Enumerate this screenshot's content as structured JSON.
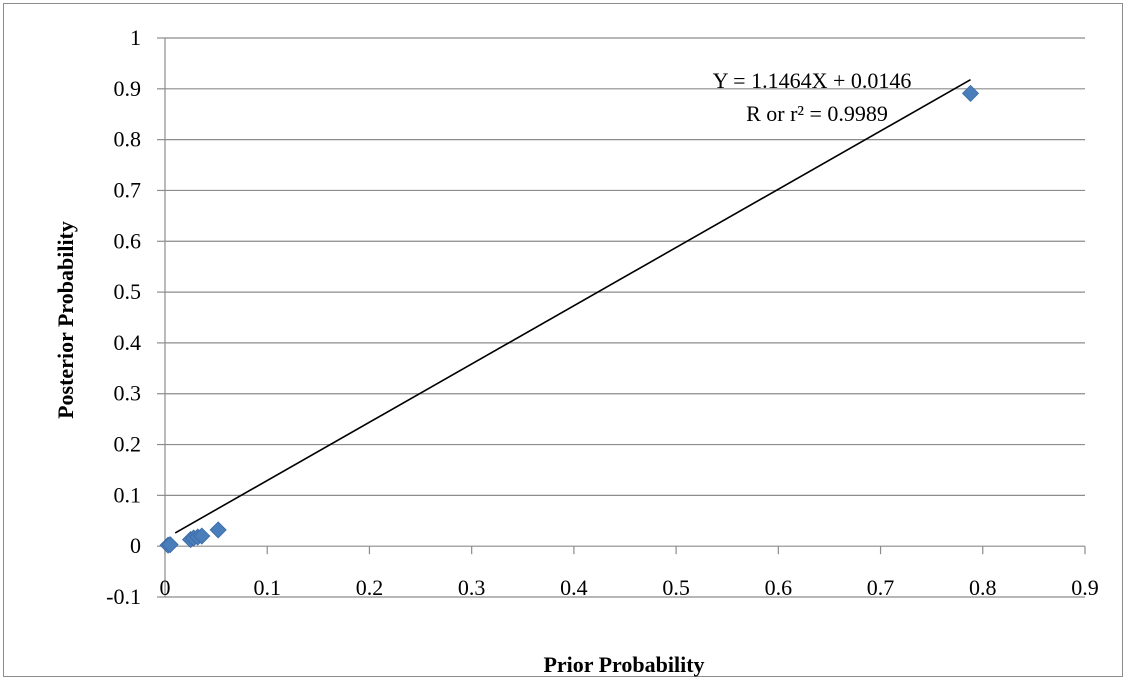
{
  "chart_data": {
    "type": "scatter",
    "title": "",
    "xlabel": "Prior Probability",
    "ylabel": "Posterior Probability",
    "xlim": [
      0,
      0.9
    ],
    "ylim": [
      -0.1,
      1
    ],
    "x_ticks": [
      "0",
      "0.1",
      "0.2",
      "0.3",
      "0.4",
      "0.5",
      "0.6",
      "0.7",
      "0.8",
      "0.9"
    ],
    "y_ticks": [
      "-0.1",
      "0",
      "0.1",
      "0.2",
      "0.3",
      "0.4",
      "0.5",
      "0.6",
      "0.7",
      "0.8",
      "0.9",
      "1"
    ],
    "grid": "horizontal",
    "legend": "none",
    "series": [
      {
        "marker": "diamond",
        "color": "#4a7ebb",
        "x": [
          0.003,
          0.005,
          0.025,
          0.028,
          0.032,
          0.036,
          0.052,
          0.788
        ],
        "y": [
          0.002,
          0.003,
          0.013,
          0.016,
          0.018,
          0.02,
          0.032,
          0.891
        ]
      }
    ],
    "trendline": {
      "type": "linear",
      "slope": 1.1464,
      "intercept": 0.0146,
      "x_range": [
        0.01,
        0.788
      ],
      "color": "#000000"
    },
    "annotations": {
      "equation": "Y = 1.1464X + 0.0146",
      "r_squared": "R or r² = 0.9989"
    }
  }
}
